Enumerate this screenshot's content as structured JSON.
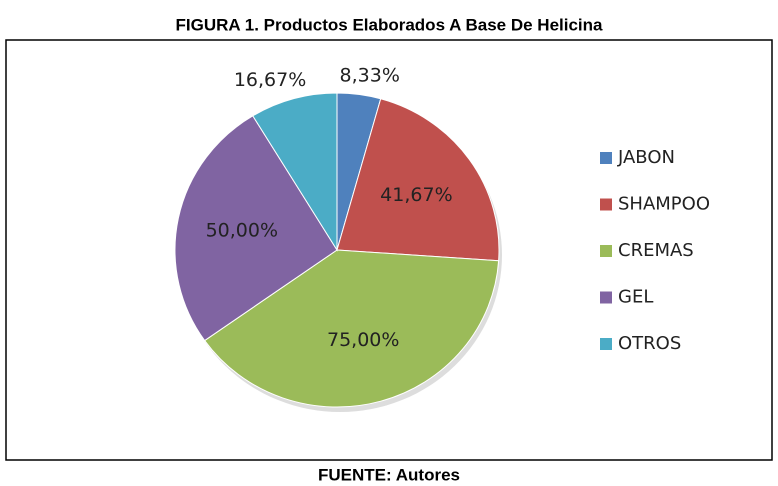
{
  "chart_data": {
    "type": "pie",
    "title": "FIGURA 1. Productos Elaborados A Base De Helicina",
    "source": "FUENTE: Autores",
    "categories": [
      "JABON",
      "SHAMPOO",
      "CREMAS",
      "GEL",
      "OTROS"
    ],
    "values": [
      8.33,
      41.67,
      75,
      50,
      16.67
    ],
    "value_labels": [
      "8,33%",
      "41,67%",
      "75,00%",
      "50,00%",
      "16,67%"
    ],
    "colors": [
      "#4f81bd",
      "#c0504d",
      "#9bbb59",
      "#8064a2",
      "#4bacc6"
    ],
    "legend": "right"
  }
}
